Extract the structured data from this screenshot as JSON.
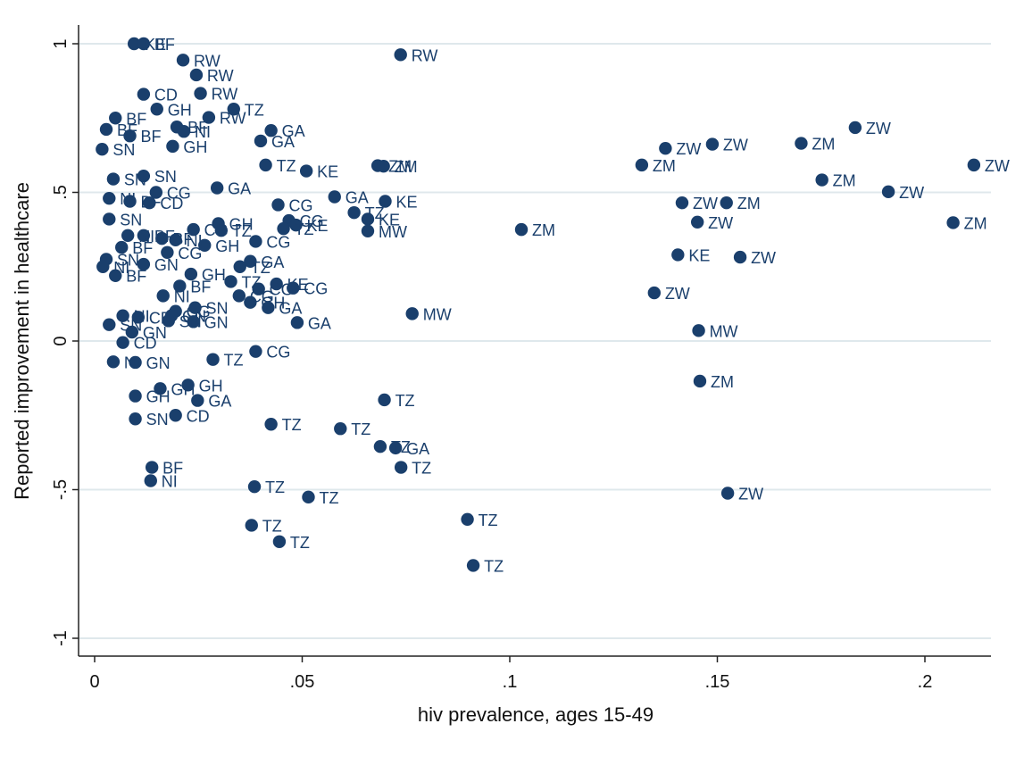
{
  "chart_data": {
    "type": "scatter",
    "xlabel": "hiv prevalence, ages 15-49",
    "ylabel": "Reported improvement in healthcare",
    "xlim": [
      -0.003,
      0.215
    ],
    "ylim": [
      -1.05,
      1.05
    ],
    "xticks": [
      {
        "v": 0,
        "label": "0"
      },
      {
        "v": 0.05,
        "label": ".05"
      },
      {
        "v": 0.1,
        "label": ".1"
      },
      {
        "v": 0.15,
        "label": ".15"
      },
      {
        "v": 0.2,
        "label": ".2"
      }
    ],
    "yticks": [
      {
        "v": -1,
        "label": "-1"
      },
      {
        "v": -0.5,
        "label": "-.5"
      },
      {
        "v": 0,
        "label": "0"
      },
      {
        "v": 0.5,
        "label": ".5"
      },
      {
        "v": 1,
        "label": "1"
      }
    ],
    "grid": "horizontal",
    "colors": {
      "marker": "#1a3f6c",
      "grid": "#dfe8ec",
      "axis": "#222222"
    },
    "points": [
      {
        "x": 0.0095,
        "y": 1.0,
        "label": "KE"
      },
      {
        "x": 0.0118,
        "y": 1.0,
        "label": "BF"
      },
      {
        "x": 0.0213,
        "y": 0.945,
        "label": "RW"
      },
      {
        "x": 0.0245,
        "y": 0.895,
        "label": "RW"
      },
      {
        "x": 0.0737,
        "y": 0.963,
        "label": "RW"
      },
      {
        "x": 0.0118,
        "y": 0.83,
        "label": "CD"
      },
      {
        "x": 0.0255,
        "y": 0.833,
        "label": "RW"
      },
      {
        "x": 0.0335,
        "y": 0.78,
        "label": "TZ"
      },
      {
        "x": 0.0275,
        "y": 0.752,
        "label": "RW"
      },
      {
        "x": 0.015,
        "y": 0.78,
        "label": "GH"
      },
      {
        "x": 0.005,
        "y": 0.75,
        "label": "BF"
      },
      {
        "x": 0.0028,
        "y": 0.712,
        "label": "BF"
      },
      {
        "x": 0.0198,
        "y": 0.72,
        "label": "BF"
      },
      {
        "x": 0.0215,
        "y": 0.705,
        "label": "NI"
      },
      {
        "x": 0.0085,
        "y": 0.69,
        "label": "BF"
      },
      {
        "x": 0.0018,
        "y": 0.645,
        "label": "SN"
      },
      {
        "x": 0.0188,
        "y": 0.655,
        "label": "GH"
      },
      {
        "x": 0.0425,
        "y": 0.708,
        "label": "GA"
      },
      {
        "x": 0.04,
        "y": 0.673,
        "label": "GA"
      },
      {
        "x": 0.0412,
        "y": 0.592,
        "label": "TZ"
      },
      {
        "x": 0.051,
        "y": 0.572,
        "label": "KE"
      },
      {
        "x": 0.0682,
        "y": 0.59,
        "label": "ZM"
      },
      {
        "x": 0.0696,
        "y": 0.588,
        "label": "ZM"
      },
      {
        "x": 0.0045,
        "y": 0.545,
        "label": "SN"
      },
      {
        "x": 0.0118,
        "y": 0.555,
        "label": "SN"
      },
      {
        "x": 0.0148,
        "y": 0.5,
        "label": "CG"
      },
      {
        "x": 0.0295,
        "y": 0.515,
        "label": "GA"
      },
      {
        "x": 0.0035,
        "y": 0.48,
        "label": "NI"
      },
      {
        "x": 0.0085,
        "y": 0.47,
        "label": "BF"
      },
      {
        "x": 0.0132,
        "y": 0.465,
        "label": "CD"
      },
      {
        "x": 0.0442,
        "y": 0.458,
        "label": "CG"
      },
      {
        "x": 0.0578,
        "y": 0.485,
        "label": "GA"
      },
      {
        "x": 0.07,
        "y": 0.47,
        "label": "KE"
      },
      {
        "x": 0.0035,
        "y": 0.41,
        "label": "SN"
      },
      {
        "x": 0.0298,
        "y": 0.395,
        "label": "GH"
      },
      {
        "x": 0.0468,
        "y": 0.405,
        "label": "CG"
      },
      {
        "x": 0.0625,
        "y": 0.432,
        "label": "TZ"
      },
      {
        "x": 0.0658,
        "y": 0.41,
        "label": "KE"
      },
      {
        "x": 0.0485,
        "y": 0.39,
        "label": "KE"
      },
      {
        "x": 0.0455,
        "y": 0.378,
        "label": "TZ"
      },
      {
        "x": 0.0658,
        "y": 0.37,
        "label": "MW"
      },
      {
        "x": 0.0238,
        "y": 0.375,
        "label": "CG"
      },
      {
        "x": 0.0305,
        "y": 0.372,
        "label": "TZ"
      },
      {
        "x": 0.0118,
        "y": 0.355,
        "label": "BF"
      },
      {
        "x": 0.0162,
        "y": 0.345,
        "label": "BF"
      },
      {
        "x": 0.008,
        "y": 0.355,
        "label": "NI"
      },
      {
        "x": 0.0195,
        "y": 0.34,
        "label": "NI"
      },
      {
        "x": 0.0265,
        "y": 0.322,
        "label": "GH"
      },
      {
        "x": 0.0388,
        "y": 0.335,
        "label": "CG"
      },
      {
        "x": 0.0065,
        "y": 0.315,
        "label": "BF"
      },
      {
        "x": 0.0175,
        "y": 0.298,
        "label": "CG"
      },
      {
        "x": 0.0028,
        "y": 0.275,
        "label": "SN"
      },
      {
        "x": 0.0118,
        "y": 0.258,
        "label": "GN"
      },
      {
        "x": 0.002,
        "y": 0.25,
        "label": "NI"
      },
      {
        "x": 0.005,
        "y": 0.22,
        "label": "BF"
      },
      {
        "x": 0.0375,
        "y": 0.268,
        "label": "GA"
      },
      {
        "x": 0.035,
        "y": 0.25,
        "label": "TZ"
      },
      {
        "x": 0.0232,
        "y": 0.225,
        "label": "GH"
      },
      {
        "x": 0.0328,
        "y": 0.2,
        "label": "TZ"
      },
      {
        "x": 0.0205,
        "y": 0.185,
        "label": "BF"
      },
      {
        "x": 0.0165,
        "y": 0.152,
        "label": "NI"
      },
      {
        "x": 0.0438,
        "y": 0.192,
        "label": "KE"
      },
      {
        "x": 0.0478,
        "y": 0.178,
        "label": "CG"
      },
      {
        "x": 0.0395,
        "y": 0.175,
        "label": "CG"
      },
      {
        "x": 0.0348,
        "y": 0.152,
        "label": "CG"
      },
      {
        "x": 0.0375,
        "y": 0.13,
        "label": "GH"
      },
      {
        "x": 0.0418,
        "y": 0.112,
        "label": "GA"
      },
      {
        "x": 0.0242,
        "y": 0.112,
        "label": "SN"
      },
      {
        "x": 0.0195,
        "y": 0.1,
        "label": "CG"
      },
      {
        "x": 0.0185,
        "y": 0.085,
        "label": "GN"
      },
      {
        "x": 0.0068,
        "y": 0.085,
        "label": "NI"
      },
      {
        "x": 0.0105,
        "y": 0.08,
        "label": "CD"
      },
      {
        "x": 0.0178,
        "y": 0.068,
        "label": "SN"
      },
      {
        "x": 0.0238,
        "y": 0.065,
        "label": "GN"
      },
      {
        "x": 0.0488,
        "y": 0.062,
        "label": "GA"
      },
      {
        "x": 0.0035,
        "y": 0.055,
        "label": "SN"
      },
      {
        "x": 0.0765,
        "y": 0.092,
        "label": "MW"
      },
      {
        "x": 0.009,
        "y": 0.03,
        "label": "GN"
      },
      {
        "x": 0.0068,
        "y": -0.005,
        "label": "CD"
      },
      {
        "x": 0.0045,
        "y": -0.07,
        "label": "NI"
      },
      {
        "x": 0.0098,
        "y": -0.072,
        "label": "GN"
      },
      {
        "x": 0.0388,
        "y": -0.035,
        "label": "CG"
      },
      {
        "x": 0.0285,
        "y": -0.062,
        "label": "TZ"
      },
      {
        "x": 0.0158,
        "y": -0.16,
        "label": "GH"
      },
      {
        "x": 0.0225,
        "y": -0.148,
        "label": "GH"
      },
      {
        "x": 0.0098,
        "y": -0.185,
        "label": "GH"
      },
      {
        "x": 0.0248,
        "y": -0.2,
        "label": "GA"
      },
      {
        "x": 0.0698,
        "y": -0.198,
        "label": "TZ"
      },
      {
        "x": 0.0098,
        "y": -0.262,
        "label": "SN"
      },
      {
        "x": 0.0195,
        "y": -0.25,
        "label": "CD"
      },
      {
        "x": 0.0425,
        "y": -0.28,
        "label": "TZ"
      },
      {
        "x": 0.0592,
        "y": -0.295,
        "label": "TZ"
      },
      {
        "x": 0.0688,
        "y": -0.355,
        "label": "TZ"
      },
      {
        "x": 0.0725,
        "y": -0.36,
        "label": "GA"
      },
      {
        "x": 0.0738,
        "y": -0.425,
        "label": "TZ"
      },
      {
        "x": 0.0138,
        "y": -0.425,
        "label": "BF"
      },
      {
        "x": 0.0135,
        "y": -0.47,
        "label": "NI"
      },
      {
        "x": 0.0385,
        "y": -0.49,
        "label": "TZ"
      },
      {
        "x": 0.0515,
        "y": -0.525,
        "label": "TZ"
      },
      {
        "x": 0.0378,
        "y": -0.62,
        "label": "TZ"
      },
      {
        "x": 0.0445,
        "y": -0.675,
        "label": "TZ"
      },
      {
        "x": 0.0898,
        "y": -0.6,
        "label": "TZ"
      },
      {
        "x": 0.0912,
        "y": -0.755,
        "label": "TZ"
      },
      {
        "x": 0.1028,
        "y": 0.375,
        "label": "ZM"
      },
      {
        "x": 0.1318,
        "y": 0.592,
        "label": "ZM"
      },
      {
        "x": 0.1375,
        "y": 0.648,
        "label": "ZW"
      },
      {
        "x": 0.1488,
        "y": 0.662,
        "label": "ZW"
      },
      {
        "x": 0.1702,
        "y": 0.665,
        "label": "ZM"
      },
      {
        "x": 0.1832,
        "y": 0.718,
        "label": "ZW"
      },
      {
        "x": 0.1752,
        "y": 0.542,
        "label": "ZM"
      },
      {
        "x": 0.1912,
        "y": 0.502,
        "label": "ZW"
      },
      {
        "x": 0.2118,
        "y": 0.592,
        "label": "ZW"
      },
      {
        "x": 0.2068,
        "y": 0.398,
        "label": "ZM"
      },
      {
        "x": 0.1415,
        "y": 0.465,
        "label": "ZW"
      },
      {
        "x": 0.1522,
        "y": 0.465,
        "label": "ZM"
      },
      {
        "x": 0.1452,
        "y": 0.4,
        "label": "ZW"
      },
      {
        "x": 0.1405,
        "y": 0.29,
        "label": "KE"
      },
      {
        "x": 0.1555,
        "y": 0.282,
        "label": "ZW"
      },
      {
        "x": 0.1348,
        "y": 0.162,
        "label": "ZW"
      },
      {
        "x": 0.1455,
        "y": 0.035,
        "label": "MW"
      },
      {
        "x": 0.1458,
        "y": -0.135,
        "label": "ZM"
      },
      {
        "x": 0.1525,
        "y": -0.512,
        "label": "ZW"
      }
    ]
  }
}
